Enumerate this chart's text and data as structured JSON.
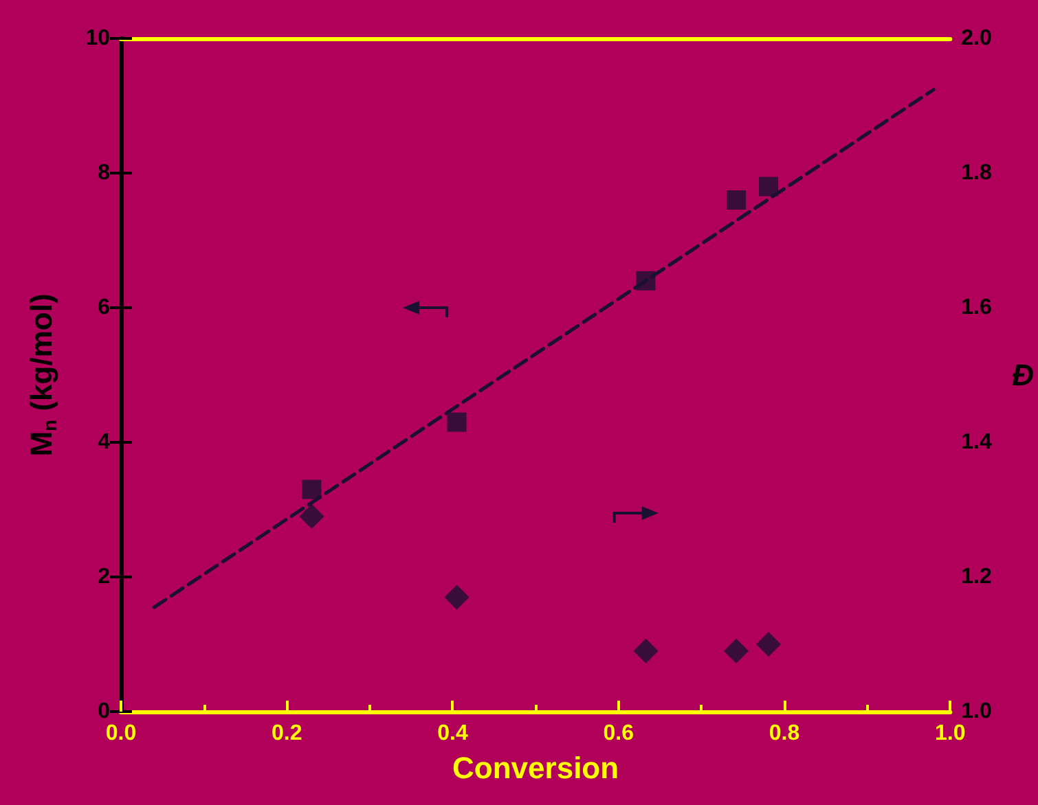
{
  "chart_data": {
    "type": "scatter",
    "xlabel": "Conversion",
    "ylabel": "M$_{n}$ (kg/mol)",
    "y2label": "Đ",
    "grid": false,
    "xlim": [
      0,
      1
    ],
    "xticks": [
      {
        "value": 0,
        "label": "0.0"
      },
      0.2,
      0.4,
      0.6,
      0.8,
      {
        "value": 1,
        "label": "1.0"
      }
    ],
    "ylim": [
      0,
      10
    ],
    "yticks": [
      0,
      2,
      4,
      6,
      8,
      10
    ],
    "y2lim": [
      1,
      2
    ],
    "y2ticks": [
      {
        "value": 1,
        "label": "1.0"
      },
      1.2,
      1.4,
      1.6,
      1.8,
      {
        "value": 2,
        "label": "2.0"
      }
    ],
    "series": [
      {
        "marker": "square",
        "color": "#1a1030",
        "x": [
          0.23,
          0.405,
          0.633,
          0.742,
          0.781
        ],
        "values": [
          3.3,
          4.3,
          6.4,
          7.6,
          7.8
        ]
      },
      {
        "marker": "diamond",
        "color": "#1a1030",
        "axis": "y2",
        "x": [
          0.23,
          0.405,
          0.633,
          0.742,
          0.781
        ],
        "values": [
          1.29,
          1.17,
          1.09,
          1.09,
          1.1
        ]
      },
      {
        "type": "line",
        "marker": "none",
        "line_style": "dashed",
        "color": "#1a1030",
        "x": [
          0.04,
          0.98
        ],
        "values": [
          1.55,
          9.24
        ]
      }
    ]
  }
}
